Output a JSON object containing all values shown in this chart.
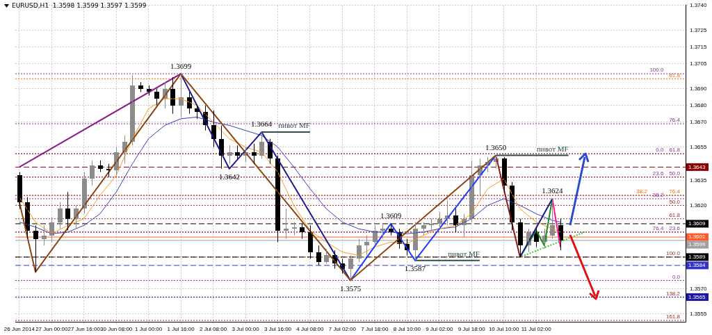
{
  "chart_data": {
    "type": "candlestick",
    "title": "EURUSD,H1  1.3598 1.3599 1.3597 1.3599",
    "colors": [
      "#000000",
      "#000000",
      "#000000",
      "#8c8c8c",
      "#8c8c8c",
      "#8c8c8c",
      "#000000",
      "#8c8c8c",
      "#8c8c8c",
      "#8c8c8c",
      "#000000",
      "#000000",
      "#8c8c8c",
      "#8c8c8c",
      "#8c8c8c",
      "#000000",
      "#000000",
      "#000000",
      "#8c8c8c",
      "#000000",
      "#8c8c8c",
      "#000000",
      "#000000",
      "#000000",
      "#000000",
      "#000000",
      "#8c8c8c",
      "#000000",
      "#8c8c8c",
      "#000000",
      "#8c8c8c",
      "#000000",
      "#000000",
      "#8c8c8c",
      "#8c8c8c",
      "#000000",
      "#000000",
      "#000000",
      "#8c8c8c",
      "#000000",
      "#000000",
      "#8c8c8c",
      "#8c8c8c",
      "#8c8c8c",
      "#8c8c8c",
      "#8c8c8c",
      "#000000",
      "#000000",
      "#000000",
      "#8c8c8c",
      "#8c8c8c",
      "#8c8c8c",
      "#8c8c8c",
      "#8c8c8c",
      "#000000",
      "#8c8c8c",
      "#8c8c8c",
      "#8c8c8c",
      "#8c8c8c",
      "#8c8c8c",
      "#000000",
      "#000000",
      "#000000",
      "#8c8c8c",
      "#000000",
      "#8c8c8c",
      "#8c8c8c",
      "#000000",
      null,
      null,
      null,
      null,
      null,
      null,
      null,
      null,
      null,
      null,
      null,
      null,
      null,
      null,
      null
    ],
    "categories": [
      "26 Jun 2014",
      null,
      null,
      null,
      "27 Jun 00:00",
      null,
      null,
      null,
      "27 Jun 16:00",
      null,
      null,
      null,
      "30 Jun 08:00",
      null,
      null,
      null,
      "1 Jul 00:00",
      null,
      null,
      null,
      "1 Jul 16:00",
      null,
      null,
      null,
      "2 Jul 08:00",
      null,
      null,
      null,
      "3 Jul 00:00",
      null,
      null,
      null,
      "3 Jul 16:00",
      null,
      null,
      null,
      "4 Jul 08:00",
      null,
      null,
      null,
      "7 Jul 02:00",
      null,
      null,
      null,
      "7 Jul 18:00",
      null,
      null,
      null,
      "8 Jul 10:00",
      null,
      null,
      null,
      "9 Jul 02:00",
      null,
      null,
      null,
      "9 Jul 18:00",
      null,
      null,
      null,
      "10 Jul 10:00",
      null,
      null,
      null,
      "11 Jul 02:00",
      null,
      null,
      null,
      null,
      null,
      null,
      null,
      null,
      null,
      null,
      null,
      null,
      null,
      null,
      null,
      null,
      null,
      null
    ],
    "ohlc": [
      [
        1.3638,
        1.364,
        1.3618,
        1.3622
      ],
      [
        1.3622,
        1.3625,
        1.36,
        1.3605
      ],
      [
        1.3605,
        1.3608,
        1.358,
        1.36
      ],
      [
        1.36,
        1.3608,
        1.3596,
        1.3602
      ],
      [
        1.3602,
        1.3613,
        1.3598,
        1.361
      ],
      [
        1.361,
        1.3622,
        1.3606,
        1.3618
      ],
      [
        1.3618,
        1.3628,
        1.3605,
        1.3612
      ],
      [
        1.3612,
        1.362,
        1.3606,
        1.3618
      ],
      [
        1.3618,
        1.364,
        1.3615,
        1.3636
      ],
      [
        1.3636,
        1.3647,
        1.3632,
        1.3644
      ],
      [
        1.3644,
        1.3647,
        1.364,
        1.3642
      ],
      [
        1.3642,
        1.3645,
        1.3637,
        1.3641
      ],
      [
        1.3641,
        1.3655,
        1.3638,
        1.3652
      ],
      [
        1.3652,
        1.3662,
        1.3645,
        1.3658
      ],
      [
        1.3658,
        1.3698,
        1.3656,
        1.3692
      ],
      [
        1.3692,
        1.3694,
        1.3688,
        1.369
      ],
      [
        1.369,
        1.3692,
        1.3686,
        1.3688
      ],
      [
        1.3688,
        1.369,
        1.368,
        1.3684
      ],
      [
        1.3684,
        1.3694,
        1.3678,
        1.369
      ],
      [
        1.369,
        1.3697,
        1.3675,
        1.368
      ],
      [
        1.368,
        1.3699,
        1.3673,
        1.3685
      ],
      [
        1.3685,
        1.3688,
        1.3675,
        1.3678
      ],
      [
        1.3678,
        1.368,
        1.3672,
        1.3676
      ],
      [
        1.3676,
        1.368,
        1.3665,
        1.3668
      ],
      [
        1.3668,
        1.3677,
        1.3655,
        1.366
      ],
      [
        1.366,
        1.3668,
        1.3642,
        1.365
      ],
      [
        1.365,
        1.3656,
        1.3645,
        1.3652
      ],
      [
        1.3652,
        1.3656,
        1.3648,
        1.365
      ],
      [
        1.365,
        1.3655,
        1.3646,
        1.3652
      ],
      [
        1.3652,
        1.3657,
        1.3645,
        1.365
      ],
      [
        1.365,
        1.3664,
        1.3648,
        1.3658
      ],
      [
        1.3658,
        1.366,
        1.3645,
        1.3648
      ],
      [
        1.3648,
        1.365,
        1.3598,
        1.3605
      ],
      [
        1.3605,
        1.3618,
        1.36,
        1.3606
      ],
      [
        1.3606,
        1.361,
        1.3602,
        1.3607
      ],
      [
        1.3607,
        1.3609,
        1.36,
        1.3604
      ],
      [
        1.3604,
        1.3608,
        1.3588,
        1.3592
      ],
      [
        1.3592,
        1.3596,
        1.3584,
        1.3586
      ],
      [
        1.3586,
        1.3594,
        1.3585,
        1.359
      ],
      [
        1.359,
        1.3593,
        1.3582,
        1.3585
      ],
      [
        1.3585,
        1.3588,
        1.3579,
        1.3582
      ],
      [
        1.3582,
        1.359,
        1.3575,
        1.3588
      ],
      [
        1.3588,
        1.36,
        1.3586,
        1.3596
      ],
      [
        1.3596,
        1.3602,
        1.359,
        1.3598
      ],
      [
        1.3598,
        1.3608,
        1.3596,
        1.3605
      ],
      [
        1.3605,
        1.3609,
        1.36,
        1.3606
      ],
      [
        1.3606,
        1.3609,
        1.3602,
        1.3604
      ],
      [
        1.3604,
        1.3606,
        1.3594,
        1.3597
      ],
      [
        1.3597,
        1.36,
        1.359,
        1.3593
      ],
      [
        1.3593,
        1.361,
        1.3587,
        1.3606
      ],
      [
        1.3606,
        1.361,
        1.3602,
        1.3608
      ],
      [
        1.3608,
        1.3612,
        1.3605,
        1.3609
      ],
      [
        1.3609,
        1.3616,
        1.3606,
        1.3612
      ],
      [
        1.3612,
        1.3623,
        1.3608,
        1.3614
      ],
      [
        1.3614,
        1.3618,
        1.3604,
        1.3608
      ],
      [
        1.3608,
        1.3615,
        1.3601,
        1.3612
      ],
      [
        1.3612,
        1.3647,
        1.361,
        1.3638
      ],
      [
        1.3638,
        1.3648,
        1.3626,
        1.3644
      ],
      [
        1.3644,
        1.3649,
        1.364,
        1.3646
      ],
      [
        1.3646,
        1.365,
        1.3642,
        1.3648
      ],
      [
        1.3648,
        1.3649,
        1.3628,
        1.3632
      ],
      [
        1.3632,
        1.3634,
        1.3605,
        1.361
      ],
      [
        1.361,
        1.3612,
        1.3589,
        1.3596
      ],
      [
        1.3596,
        1.3606,
        1.3592,
        1.3604
      ],
      [
        1.3604,
        1.3607,
        1.3595,
        1.3598
      ],
      [
        1.3598,
        1.3606,
        1.3594,
        1.3602
      ],
      [
        1.3602,
        1.3624,
        1.36,
        1.3608
      ],
      [
        1.3608,
        1.3612,
        1.3593,
        1.3599
      ],
      null,
      null,
      null,
      null,
      null,
      null,
      null,
      null,
      null,
      null,
      null,
      null,
      null,
      null,
      null
    ],
    "series": [
      {
        "type": "line",
        "color": "#8b1a8b",
        "values": [
          1.3643,
          null,
          null,
          null,
          null,
          null,
          null,
          null,
          null,
          null,
          null,
          null,
          null,
          null,
          null,
          null,
          null,
          null,
          null,
          null,
          1.3699,
          null,
          null,
          null,
          null,
          null,
          null,
          null,
          null,
          null,
          null,
          null,
          null,
          null,
          null,
          null,
          null,
          null,
          null,
          null,
          null,
          null,
          null,
          null,
          null,
          null,
          null,
          null,
          null,
          null,
          null,
          null,
          null,
          null,
          null,
          null,
          null,
          null,
          null,
          null,
          null,
          null,
          null,
          null,
          null,
          null,
          null,
          null,
          null,
          null,
          null,
          null,
          null,
          null,
          null,
          null,
          null,
          null,
          null,
          null,
          null,
          null,
          null
        ]
      },
      {
        "type": "line",
        "color": "#8b4513",
        "values": [
          1.3622,
          null,
          1.358,
          null,
          null,
          null,
          null,
          null,
          null,
          null,
          null,
          null,
          null,
          null,
          null,
          null,
          null,
          null,
          null,
          null,
          1.3699,
          null,
          null,
          null,
          null,
          null,
          null,
          null,
          null,
          null,
          null,
          null,
          null,
          null,
          null,
          null,
          null,
          null,
          null,
          null,
          null,
          1.3575,
          null,
          null,
          null,
          null,
          null,
          null,
          null,
          null,
          null,
          null,
          null,
          null,
          null,
          null,
          null,
          null,
          null,
          1.365,
          null,
          null,
          null,
          null,
          null,
          null,
          null,
          null,
          null,
          null,
          null,
          null,
          null,
          null,
          null,
          null,
          null,
          null,
          null,
          null,
          null,
          null,
          null
        ],
        "value_labels": [
          null,
          null,
          null,
          null,
          null,
          null,
          null,
          null,
          null,
          null,
          null,
          null,
          null,
          null,
          null,
          null,
          null,
          null,
          null,
          null,
          "1.3699",
          null,
          null,
          null,
          null,
          null,
          null,
          null,
          null,
          null,
          null,
          null,
          null,
          null,
          null,
          null,
          null,
          null,
          null,
          null,
          null,
          "1.3575",
          null,
          null,
          null,
          null,
          null,
          null,
          null,
          null,
          null,
          null,
          null,
          null,
          null,
          null,
          null,
          null,
          null,
          "1.3650",
          null,
          null,
          null,
          null,
          null,
          null,
          null,
          null,
          null,
          null,
          null,
          null,
          null,
          null,
          null,
          null,
          null,
          null,
          null,
          null,
          null,
          null,
          null
        ]
      },
      {
        "type": "line",
        "color": "#8b1a1a",
        "values": [
          null,
          null,
          null,
          null,
          null,
          null,
          null,
          null,
          null,
          null,
          null,
          null,
          null,
          null,
          null,
          null,
          null,
          null,
          null,
          null,
          null,
          null,
          null,
          null,
          null,
          null,
          null,
          null,
          null,
          null,
          null,
          null,
          null,
          null,
          null,
          null,
          null,
          null,
          null,
          null,
          null,
          null,
          null,
          null,
          null,
          null,
          null,
          null,
          null,
          null,
          null,
          null,
          null,
          null,
          null,
          null,
          null,
          null,
          null,
          1.365,
          null,
          null,
          1.3589,
          null,
          null,
          null,
          null,
          null,
          null,
          null,
          null,
          null,
          null,
          null,
          null,
          null,
          null,
          null,
          null,
          null,
          null,
          null,
          null
        ]
      },
      {
        "type": "line",
        "color": "#1a1a8c",
        "values": [
          null,
          null,
          null,
          null,
          null,
          null,
          null,
          null,
          null,
          null,
          null,
          null,
          null,
          null,
          null,
          null,
          null,
          null,
          null,
          null,
          1.3699,
          null,
          null,
          null,
          null,
          null,
          1.3642,
          null,
          null,
          null,
          1.3664,
          null,
          null,
          null,
          null,
          null,
          null,
          null,
          null,
          null,
          null,
          1.3575,
          null,
          null,
          null,
          null,
          null,
          null,
          null,
          null,
          null,
          null,
          null,
          null,
          null,
          null,
          null,
          null,
          null,
          null,
          null,
          null,
          null,
          null,
          null,
          null,
          null,
          null,
          null,
          null,
          null,
          null,
          null,
          null,
          null,
          null,
          null,
          null,
          null,
          null,
          null,
          null,
          null
        ],
        "value_labels": [
          null,
          null,
          null,
          null,
          null,
          null,
          null,
          null,
          null,
          null,
          null,
          null,
          null,
          null,
          null,
          null,
          null,
          null,
          null,
          null,
          null,
          null,
          null,
          null,
          null,
          null,
          "1.3642",
          null,
          null,
          null,
          "1.3664",
          null,
          null,
          null,
          null,
          null,
          null,
          null,
          null,
          null,
          null,
          null,
          null,
          null,
          null,
          null,
          null,
          null,
          null,
          null,
          null,
          null,
          null,
          null,
          null,
          null,
          null,
          null,
          null,
          null,
          null,
          null,
          null,
          null,
          null,
          null,
          null,
          null,
          null,
          null,
          null,
          null,
          null,
          null,
          null,
          null,
          null,
          null,
          null,
          null,
          null,
          null,
          null
        ]
      },
      {
        "type": "line",
        "color": "#1e3cff",
        "values": [
          null,
          null,
          null,
          null,
          null,
          null,
          null,
          null,
          null,
          null,
          null,
          null,
          null,
          null,
          null,
          null,
          null,
          null,
          null,
          null,
          null,
          null,
          null,
          null,
          null,
          null,
          null,
          null,
          null,
          null,
          null,
          null,
          null,
          null,
          null,
          null,
          null,
          null,
          null,
          null,
          null,
          1.3575,
          null,
          null,
          null,
          null,
          1.3609,
          null,
          null,
          1.3587,
          null,
          null,
          null,
          null,
          null,
          null,
          null,
          null,
          null,
          1.365,
          null,
          null,
          null,
          null,
          null,
          null,
          null,
          null,
          null,
          null,
          null,
          null,
          null,
          null,
          null,
          null,
          null,
          null,
          null,
          null,
          null,
          null,
          null
        ],
        "value_labels": [
          null,
          null,
          null,
          null,
          null,
          null,
          null,
          null,
          null,
          null,
          null,
          null,
          null,
          null,
          null,
          null,
          null,
          null,
          null,
          null,
          null,
          null,
          null,
          null,
          null,
          null,
          null,
          null,
          null,
          null,
          null,
          null,
          null,
          null,
          null,
          null,
          null,
          null,
          null,
          null,
          null,
          null,
          null,
          null,
          null,
          null,
          "1.3609",
          null,
          null,
          "1.3587",
          null,
          null,
          null,
          null,
          null,
          null,
          null,
          null,
          null,
          null,
          null,
          null,
          null,
          null,
          null,
          null,
          null,
          null,
          null,
          null,
          null,
          null,
          null,
          null,
          null,
          null,
          null,
          null,
          null,
          null,
          null,
          null,
          null
        ]
      },
      {
        "type": "line",
        "color": "#1a1a8c",
        "values": [
          null,
          null,
          null,
          null,
          null,
          null,
          null,
          null,
          null,
          null,
          null,
          null,
          null,
          null,
          null,
          null,
          null,
          null,
          null,
          null,
          null,
          null,
          null,
          null,
          null,
          null,
          null,
          null,
          null,
          null,
          null,
          null,
          null,
          null,
          null,
          null,
          null,
          null,
          null,
          null,
          null,
          null,
          null,
          null,
          null,
          null,
          null,
          null,
          null,
          null,
          null,
          null,
          null,
          null,
          null,
          null,
          null,
          null,
          null,
          null,
          null,
          null,
          1.3589,
          null,
          null,
          null,
          1.3624,
          null,
          null,
          null,
          null,
          null,
          null,
          null,
          null,
          null,
          null,
          null,
          null,
          null,
          null,
          null,
          null
        ],
        "value_labels": [
          null,
          null,
          null,
          null,
          null,
          null,
          null,
          null,
          null,
          null,
          null,
          null,
          null,
          null,
          null,
          null,
          null,
          null,
          null,
          null,
          null,
          null,
          null,
          null,
          null,
          null,
          null,
          null,
          null,
          null,
          null,
          null,
          null,
          null,
          null,
          null,
          null,
          null,
          null,
          null,
          null,
          null,
          null,
          null,
          null,
          null,
          null,
          null,
          null,
          null,
          null,
          null,
          null,
          null,
          null,
          null,
          null,
          null,
          null,
          null,
          null,
          null,
          null,
          null,
          null,
          null,
          "1.3624",
          null,
          null,
          null,
          null,
          null,
          null,
          null,
          null,
          null,
          null,
          null,
          null,
          null,
          null,
          null,
          null
        ]
      },
      {
        "type": "line",
        "color": "#1a8c1a",
        "values": [
          null,
          null,
          null,
          null,
          null,
          null,
          null,
          null,
          null,
          null,
          null,
          null,
          null,
          null,
          null,
          null,
          null,
          null,
          null,
          null,
          null,
          null,
          null,
          null,
          null,
          null,
          null,
          null,
          null,
          null,
          null,
          null,
          null,
          null,
          null,
          null,
          null,
          null,
          null,
          null,
          null,
          null,
          null,
          null,
          null,
          null,
          null,
          null,
          null,
          null,
          null,
          null,
          null,
          null,
          null,
          null,
          null,
          null,
          null,
          null,
          null,
          null,
          1.3589,
          null,
          1.3605,
          1.3596,
          1.3624,
          null,
          null,
          null,
          null,
          null,
          null,
          null,
          null,
          null,
          null,
          null,
          null,
          null,
          null,
          null,
          null
        ]
      },
      {
        "type": "line",
        "color": "#ff1493",
        "values": [
          null,
          null,
          null,
          null,
          null,
          null,
          null,
          null,
          null,
          null,
          null,
          null,
          null,
          null,
          null,
          null,
          null,
          null,
          null,
          null,
          null,
          null,
          null,
          null,
          null,
          null,
          null,
          null,
          null,
          null,
          null,
          null,
          null,
          null,
          null,
          null,
          null,
          null,
          null,
          null,
          null,
          null,
          null,
          null,
          null,
          null,
          null,
          null,
          null,
          null,
          null,
          null,
          null,
          null,
          null,
          null,
          null,
          null,
          null,
          null,
          null,
          null,
          null,
          null,
          null,
          null,
          1.3624,
          1.3595,
          null,
          null,
          null,
          null,
          null,
          null,
          null,
          null,
          null,
          null,
          null,
          null,
          null,
          null,
          null
        ]
      },
      {
        "type": "line",
        "color": "#32cd32",
        "line_style": "dotted",
        "values": [
          null,
          null,
          null,
          null,
          null,
          null,
          null,
          null,
          null,
          null,
          null,
          null,
          null,
          null,
          null,
          null,
          null,
          null,
          null,
          null,
          null,
          null,
          null,
          null,
          null,
          null,
          null,
          null,
          null,
          null,
          null,
          null,
          null,
          null,
          null,
          null,
          null,
          null,
          null,
          null,
          null,
          null,
          null,
          null,
          null,
          null,
          null,
          null,
          null,
          null,
          null,
          null,
          null,
          null,
          null,
          null,
          null,
          null,
          null,
          null,
          null,
          null,
          1.3589,
          null,
          null,
          null,
          null,
          null,
          null,
          null,
          1.3604,
          null,
          null,
          null,
          null,
          null,
          null,
          null,
          null,
          null,
          null,
          null,
          null
        ]
      },
      {
        "type": "line",
        "color": "#ff9a1a",
        "values": [
          1.3625,
          null,
          1.361,
          null,
          1.3603,
          null,
          1.3608,
          null,
          1.3612,
          null,
          1.3626,
          null,
          1.3638,
          null,
          1.366,
          null,
          1.3678,
          null,
          1.3684,
          null,
          1.3684,
          null,
          1.368,
          null,
          1.367,
          null,
          1.366,
          null,
          1.3655,
          null,
          1.3652,
          null,
          1.364,
          null,
          1.362,
          null,
          1.3605,
          null,
          1.3598,
          null,
          1.3592,
          null,
          1.359,
          null,
          1.3595,
          null,
          1.3598,
          null,
          1.3597,
          null,
          1.3602,
          null,
          1.3606,
          null,
          1.3608,
          null,
          1.3615,
          null,
          1.363,
          null,
          1.3636,
          null,
          1.3618,
          null,
          1.361,
          null,
          1.3606,
          1.3604,
          null,
          null,
          null,
          null,
          null,
          null,
          null,
          null,
          null,
          null,
          null,
          null,
          null,
          null,
          null
        ]
      },
      {
        "type": "line",
        "color": "#3c3cc8",
        "values": [
          1.361,
          null,
          1.3607,
          null,
          1.3603,
          null,
          1.3604,
          null,
          1.3608,
          null,
          1.3615,
          null,
          1.3628,
          null,
          1.3645,
          null,
          1.366,
          null,
          1.3668,
          null,
          1.3672,
          null,
          1.3673,
          null,
          1.367,
          null,
          1.3668,
          null,
          1.3665,
          null,
          1.3662,
          null,
          1.3655,
          null,
          1.3643,
          null,
          1.363,
          null,
          1.3618,
          null,
          1.361,
          null,
          1.3606,
          null,
          1.3604,
          null,
          1.3604,
          null,
          1.3603,
          null,
          1.3604,
          null,
          1.3606,
          null,
          1.3607,
          null,
          1.3612,
          null,
          1.362,
          null,
          1.3624,
          null,
          1.362,
          null,
          1.3615,
          null,
          1.3611,
          1.361,
          null,
          null,
          null,
          null,
          null,
          null,
          null,
          null,
          null,
          null,
          null,
          null,
          null,
          null,
          null
        ]
      },
      {
        "type": "line",
        "color": "#2f4f4f",
        "name": "пивот MF",
        "values": [
          null,
          null,
          null,
          null,
          null,
          null,
          null,
          null,
          null,
          null,
          null,
          null,
          null,
          null,
          null,
          null,
          null,
          null,
          null,
          null,
          null,
          null,
          null,
          null,
          null,
          null,
          null,
          null,
          null,
          null,
          1.3664,
          null,
          null,
          null,
          null,
          null,
          1.3664,
          null,
          null,
          null,
          null,
          null,
          null,
          null,
          null,
          null,
          null,
          null,
          null,
          null,
          null,
          null,
          null,
          null,
          null,
          null,
          null,
          null,
          null,
          null,
          null,
          null,
          null,
          null,
          null,
          null,
          null,
          null,
          null,
          null,
          null,
          null,
          null,
          null,
          null,
          null,
          null,
          null,
          null,
          null,
          null,
          null,
          null
        ]
      },
      {
        "type": "line",
        "color": "#2f4f4f",
        "name": "пивот MF",
        "values": [
          null,
          null,
          null,
          null,
          null,
          null,
          null,
          null,
          null,
          null,
          null,
          null,
          null,
          null,
          null,
          null,
          null,
          null,
          null,
          null,
          null,
          null,
          null,
          null,
          null,
          null,
          null,
          null,
          null,
          null,
          null,
          null,
          null,
          null,
          null,
          null,
          null,
          null,
          null,
          null,
          null,
          null,
          null,
          null,
          null,
          null,
          null,
          null,
          null,
          1.3587,
          null,
          null,
          null,
          null,
          null,
          null,
          null,
          1.3587,
          null,
          null,
          null,
          null,
          null,
          null,
          null,
          null,
          null,
          null,
          null,
          null,
          null,
          null,
          null,
          null,
          null,
          null,
          null,
          null,
          null,
          null,
          null,
          null,
          null
        ]
      },
      {
        "type": "line",
        "color": "#2f4f4f",
        "name": "пивот MF",
        "values": [
          null,
          null,
          null,
          null,
          null,
          null,
          null,
          null,
          null,
          null,
          null,
          null,
          null,
          null,
          null,
          null,
          null,
          null,
          null,
          null,
          null,
          null,
          null,
          null,
          null,
          null,
          null,
          null,
          null,
          null,
          null,
          null,
          null,
          null,
          null,
          null,
          null,
          null,
          null,
          null,
          null,
          null,
          null,
          null,
          null,
          null,
          null,
          null,
          null,
          null,
          null,
          null,
          null,
          null,
          null,
          null,
          null,
          null,
          null,
          1.365,
          null,
          null,
          null,
          null,
          null,
          null,
          null,
          null,
          1.365,
          null,
          null,
          null,
          null,
          null,
          null,
          null,
          null,
          null,
          null,
          null,
          null,
          null,
          null
        ]
      }
    ],
    "ref_lines": [
      {
        "axis": "y",
        "value": 1.3696,
        "color": "#ff6a00",
        "line_style": "dotted"
      },
      {
        "axis": "y",
        "value": 1.3626,
        "color": "#ff6a00",
        "line_style": "dotted"
      },
      {
        "axis": "y",
        "value": 1.3699,
        "color": "#8b2f9b",
        "line_style": "dotted"
      },
      {
        "axis": "y",
        "value": 1.3669,
        "color": "#8b2f9b",
        "line_style": "dotted"
      },
      {
        "axis": "y",
        "value": 1.3651,
        "color": "#8b2f9b",
        "line_style": "dotted"
      },
      {
        "axis": "y",
        "value": 1.3637,
        "color": "#8b2f9b",
        "line_style": "dotted"
      },
      {
        "axis": "y",
        "value": 1.3624,
        "color": "#8b2f9b",
        "line_style": "dotted"
      },
      {
        "axis": "y",
        "value": 1.3604,
        "color": "#8b2f9b",
        "line_style": "dotted"
      },
      {
        "axis": "y",
        "value": 1.3575,
        "color": "#8b2f9b",
        "line_style": "dotted"
      },
      {
        "axis": "y",
        "value": 1.3651,
        "color": "#a52a2a",
        "line_style": "dotted"
      },
      {
        "axis": "y",
        "value": 1.3637,
        "color": "#a52a2a",
        "line_style": "dotted"
      },
      {
        "axis": "y",
        "value": 1.3626,
        "color": "#a52a2a",
        "line_style": "dotted"
      },
      {
        "axis": "y",
        "value": 1.362,
        "color": "#a52a2a",
        "line_style": "dotted"
      },
      {
        "axis": "y",
        "value": 1.3612,
        "color": "#a52a2a",
        "line_style": "dotted"
      },
      {
        "axis": "y",
        "value": 1.3604,
        "color": "#a52a2a",
        "line_style": "dotted"
      },
      {
        "axis": "y",
        "value": 1.3589,
        "color": "#a52a2a",
        "line_style": "dotted"
      },
      {
        "axis": "y",
        "value": 1.3565,
        "color": "#a52a2a",
        "line_style": "dotted"
      },
      {
        "axis": "y",
        "value": 1.3551,
        "color": "#a52a2a",
        "line_style": "dotted"
      },
      {
        "axis": "y",
        "value": 1.3643,
        "label": "1.3643",
        "color": "#8b0000",
        "line_style": "dashed"
      },
      {
        "axis": "y",
        "value": 1.3609,
        "label": "1.3609",
        "color": "#000000",
        "line_style": "dashed"
      },
      {
        "axis": "y",
        "value": 1.3601,
        "label": "1.3601",
        "color": "#ff5a2a",
        "line_style": "solid"
      },
      {
        "axis": "y",
        "value": 1.3599,
        "label": "1.3599",
        "color": "#a0a0a0",
        "line_style": "solid"
      },
      {
        "axis": "y",
        "value": 1.3589,
        "label": "1.3589",
        "color": "#000000",
        "line_style": "dashed"
      },
      {
        "axis": "y",
        "value": 1.3584,
        "label": "1.3584",
        "color": "#3232c8",
        "line_style": "dashed"
      },
      {
        "axis": "y",
        "value": 1.3565,
        "label": "1.3565",
        "color": "#1a1aa0",
        "line_style": "dotted"
      }
    ],
    "annotations": [
      {
        "text": "61.8",
        "y": 1.3696
      },
      {
        "text": "76.4",
        "y": 1.3626
      },
      {
        "text": "100.0",
        "y": 1.3699
      },
      {
        "text": "76.4",
        "y": 1.3669
      },
      {
        "text": "61.8",
        "y": 1.3651
      },
      {
        "text": "50.0",
        "y": 1.3637
      },
      {
        "text": "38.2",
        "y": 1.3624
      },
      {
        "text": "23.6",
        "y": 1.3604
      },
      {
        "text": "0.0",
        "y": 1.3575
      },
      {
        "text": "0.0",
        "y": 1.3651
      },
      {
        "text": "23.6",
        "y": 1.3637
      },
      {
        "text": "38.2",
        "y": 1.3626
      },
      {
        "text": "50.0",
        "y": 1.362
      },
      {
        "text": "61.8",
        "y": 1.3612
      },
      {
        "text": "76.4",
        "y": 1.3604
      },
      {
        "text": "100.0",
        "y": 1.3589
      },
      {
        "text": "138.2",
        "y": 1.3565
      },
      {
        "text": "161.8",
        "y": 1.3551
      }
    ],
    "ylim": [
      1.355,
      1.374
    ],
    "yticks": [
      {
        "value": 1.374,
        "label": "1.3740"
      },
      1.3725,
      1.3715,
      1.3705,
      {
        "value": 1.369,
        "label": "1.3690"
      },
      {
        "value": 1.368,
        "label": "1.3680"
      },
      {
        "value": 1.367,
        "label": "1.3670"
      },
      1.3655,
      1.3635,
      {
        "value": 1.362,
        "label": "1.3620"
      },
      {
        "value": 1.357,
        "label": "1.3570"
      },
      1.3555
    ],
    "grid": true,
    "legend": false,
    "marker": "none",
    "line_style": "solid"
  }
}
